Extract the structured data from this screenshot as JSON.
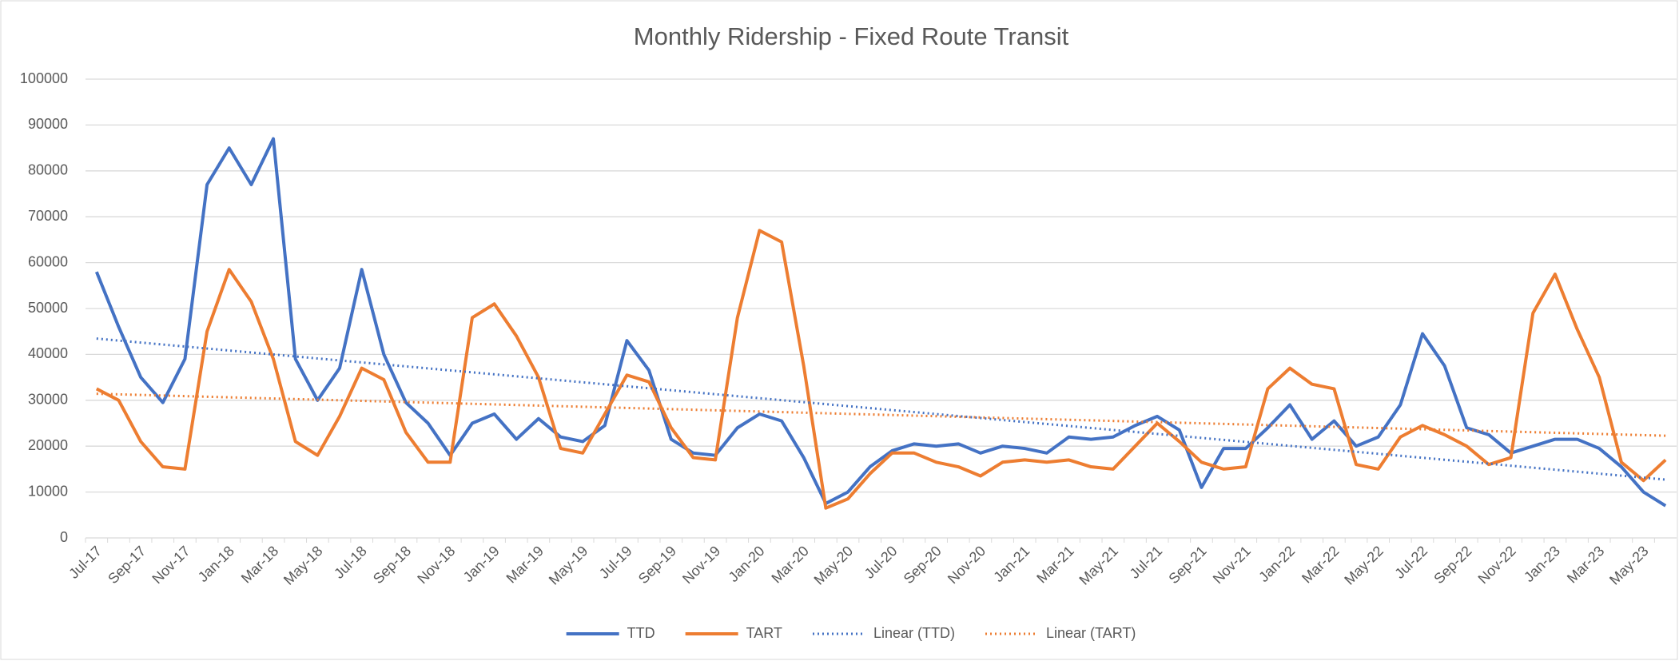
{
  "chart_data": {
    "type": "line",
    "title": "Monthly Ridership - Fixed Route Transit",
    "categories": [
      "Jul-17",
      null,
      "Sep-17",
      null,
      "Nov-17",
      null,
      "Jan-18",
      null,
      "Mar-18",
      null,
      "May-18",
      null,
      "Jul-18",
      null,
      "Sep-18",
      null,
      "Nov-18",
      null,
      "Jan-19",
      null,
      "Mar-19",
      null,
      "May-19",
      null,
      "Jul-19",
      null,
      "Sep-19",
      null,
      "Nov-19",
      null,
      "Jan-20",
      null,
      "Mar-20",
      null,
      "May-20",
      null,
      "Jul-20",
      null,
      "Sep-20",
      null,
      "Nov-20",
      null,
      "Jan-21",
      null,
      "Mar-21",
      null,
      "May-21",
      null,
      "Jul-21",
      null,
      "Sep-21",
      null,
      "Nov-21",
      null,
      "Jan-22",
      null,
      "Mar-22",
      null,
      "May-22",
      null,
      "Jul-22",
      null,
      "Sep-22",
      null,
      "Nov-22",
      null,
      "Jan-23",
      null,
      "Mar-23",
      null,
      "May-23",
      null
    ],
    "series": [
      {
        "name": "TTD",
        "color": "#4472c4",
        "values": [
          58000,
          46000,
          35000,
          29500,
          39000,
          77000,
          85000,
          77000,
          87000,
          39000,
          30000,
          37000,
          58500,
          40000,
          29500,
          25000,
          18000,
          25000,
          27000,
          21500,
          26000,
          22000,
          21000,
          24500,
          43000,
          36500,
          21500,
          18500,
          18000,
          24000,
          27000,
          25500,
          17500,
          7500,
          10000,
          15500,
          19000,
          20500,
          20000,
          20500,
          18500,
          20000,
          19500,
          18500,
          22000,
          21500,
          22000,
          24500,
          26500,
          23500,
          11000,
          19500,
          19500,
          24000,
          29000,
          21500,
          25500,
          20000,
          22000,
          29000,
          44500,
          37500,
          24000,
          22500,
          18500,
          20000,
          21500,
          21500,
          19500,
          15500,
          10000,
          7000
        ]
      },
      {
        "name": "TART",
        "color": "#ed7d31",
        "values": [
          32500,
          30000,
          21000,
          15500,
          15000,
          45000,
          58500,
          51500,
          39000,
          21000,
          18000,
          26500,
          37000,
          34500,
          23000,
          16500,
          16500,
          48000,
          51000,
          44000,
          35000,
          19500,
          18500,
          27000,
          35500,
          34000,
          24000,
          17500,
          17000,
          48000,
          67000,
          64500,
          37500,
          6500,
          8500,
          14000,
          18500,
          18500,
          16500,
          15500,
          13500,
          16500,
          17000,
          16500,
          17000,
          15500,
          15000,
          20000,
          25000,
          21000,
          16500,
          15000,
          15500,
          32500,
          37000,
          33500,
          32500,
          16000,
          15000,
          22000,
          24500,
          22500,
          20000,
          16000,
          17500,
          49000,
          57500,
          45500,
          35000,
          16500,
          12500,
          17000
        ]
      }
    ],
    "trendlines": [
      {
        "name": "Linear (TTD)",
        "series": 0,
        "color": "#4472c4"
      },
      {
        "name": "Linear (TART)",
        "series": 1,
        "color": "#ed7d31"
      }
    ],
    "ylim": [
      0,
      100000
    ],
    "yticks": [
      0,
      10000,
      20000,
      30000,
      40000,
      50000,
      60000,
      70000,
      80000,
      90000,
      100000
    ],
    "grid": true,
    "legend": "bottom"
  }
}
